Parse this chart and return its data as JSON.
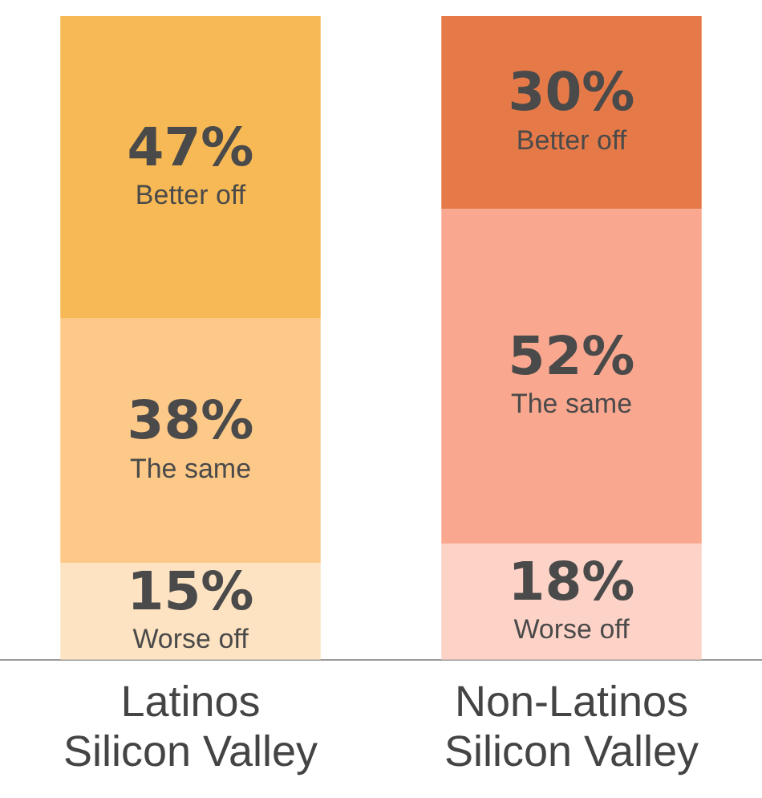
{
  "chart_data": {
    "type": "bar",
    "stacked": true,
    "categories": [
      "Latinos Silicon Valley",
      "Non-Latinos Silicon Valley"
    ],
    "series": [
      {
        "name": "Worse off",
        "colors": [
          "#fde3c2",
          "#fed3c7"
        ],
        "values": [
          15,
          18
        ],
        "value_labels": [
          "15%",
          "18%"
        ]
      },
      {
        "name": "The same",
        "colors": [
          "#fdc988",
          "#f9a88f"
        ],
        "values": [
          38,
          52
        ],
        "value_labels": [
          "38%",
          "52%"
        ]
      },
      {
        "name": "Better off",
        "colors": [
          "#f6b955",
          "#e57a48"
        ],
        "values": [
          47,
          30
        ],
        "value_labels": [
          "47%",
          "30%"
        ]
      }
    ],
    "legend": false,
    "grid": false,
    "tick_labels": "x"
  }
}
